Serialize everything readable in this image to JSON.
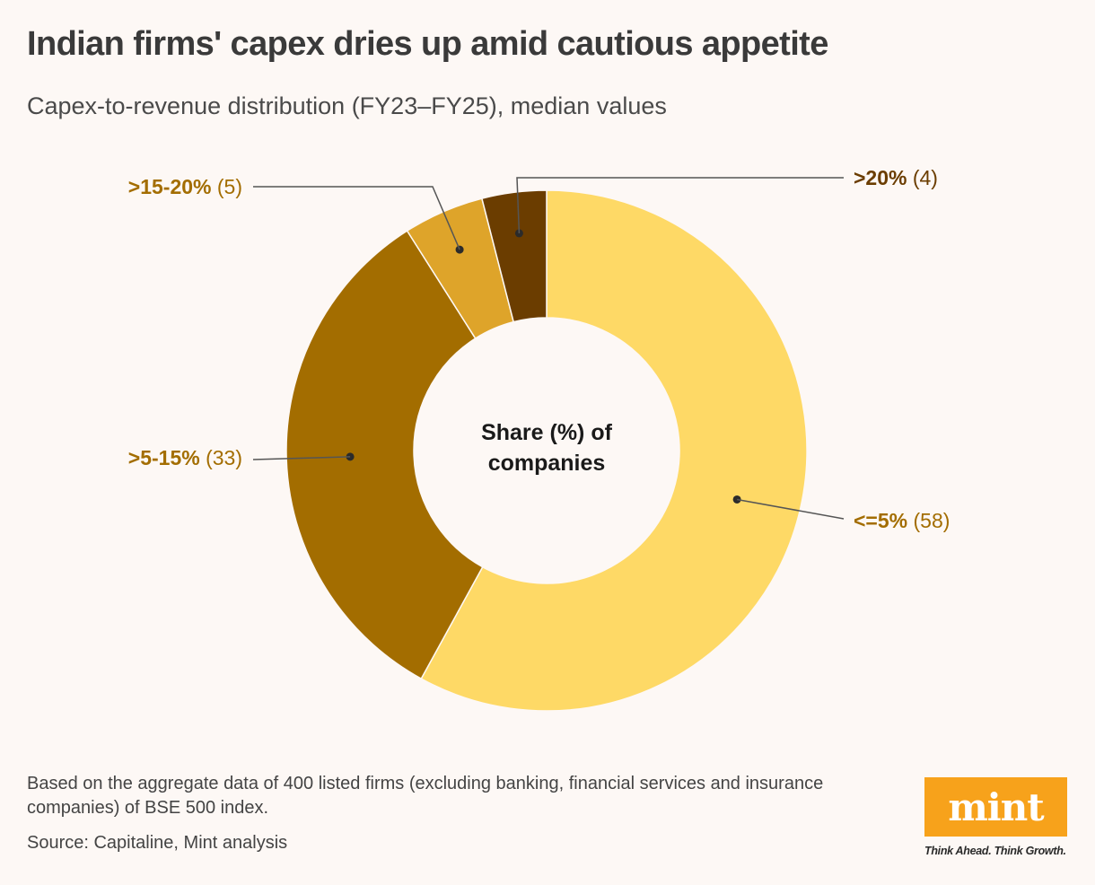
{
  "title": "Indian firms' capex dries up amid cautious appetite",
  "subtitle": "Capex-to-revenue distribution (FY23–FY25), median values",
  "chart_data": {
    "type": "pie",
    "variant": "donut",
    "center_label": [
      "Share (%) of",
      "companies"
    ],
    "categories": [
      "<=5%",
      ">5-15%",
      ">15-20%",
      ">20%"
    ],
    "values": [
      58,
      33,
      5,
      4
    ],
    "colors": [
      "#fed966",
      "#a36d00",
      "#dea42a",
      "#6b3d00"
    ],
    "label_colors": [
      "#a36d00",
      "#a36d00",
      "#a36d00",
      "#6b3d00"
    ],
    "start": "12 o'clock",
    "direction": "clockwise"
  },
  "footnote": "Based on the aggregate data of 400 listed firms (excluding banking, financial services and insurance companies) of BSE 500 index.",
  "source": "Source: Capitaline, Mint analysis",
  "logo": {
    "word": "mint",
    "tagline": "Think Ahead. Think Growth.",
    "color": "#f7a21b"
  }
}
